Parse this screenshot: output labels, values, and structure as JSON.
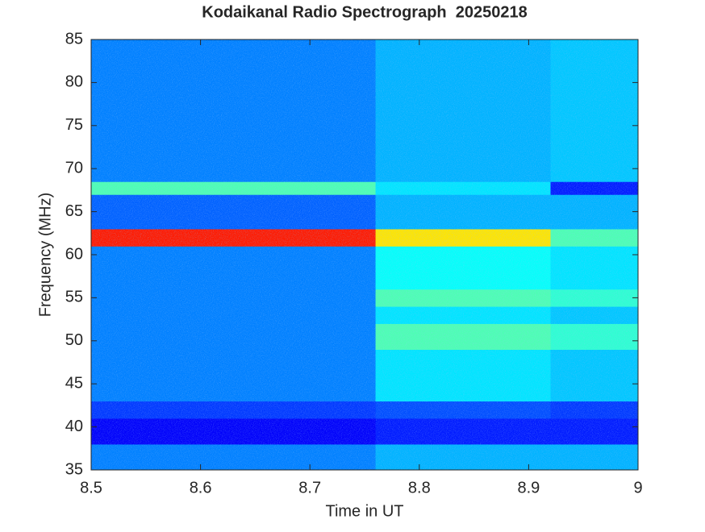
{
  "chart_data": {
    "type": "heatmap",
    "title": "Kodaikanal Radio Spectrograph  20250218",
    "x_label": "Time in UT",
    "y_label": "Frequency (MHz)",
    "colormap": "jet",
    "xbins": [
      8.5,
      8.76,
      8.92,
      9
    ],
    "ybins": [
      35,
      38,
      41,
      43,
      49,
      52,
      54,
      56,
      61,
      63,
      67,
      68.5,
      85
    ],
    "z": [
      [
        0.25,
        0.3,
        0.3
      ],
      [
        0.12,
        0.15,
        0.15
      ],
      [
        0.18,
        0.2,
        0.18
      ],
      [
        0.25,
        0.35,
        0.32
      ],
      [
        0.25,
        0.45,
        0.42
      ],
      [
        0.25,
        0.35,
        0.32
      ],
      [
        0.25,
        0.45,
        0.42
      ],
      [
        0.25,
        0.38,
        0.35
      ],
      [
        0.85,
        0.65,
        0.45
      ],
      [
        0.22,
        0.3,
        0.3
      ],
      [
        0.45,
        0.35,
        0.15
      ],
      [
        0.25,
        0.3,
        0.32
      ]
    ],
    "zlim": [
      0,
      1
    ],
    "xlim": [
      8.5,
      9
    ],
    "ylim": [
      35,
      85
    ],
    "xticks": [
      8.5,
      8.6,
      8.7,
      8.8,
      8.9,
      9
    ],
    "yticks": [
      35,
      40,
      45,
      50,
      55,
      60,
      65,
      70,
      75,
      80,
      85
    ]
  }
}
